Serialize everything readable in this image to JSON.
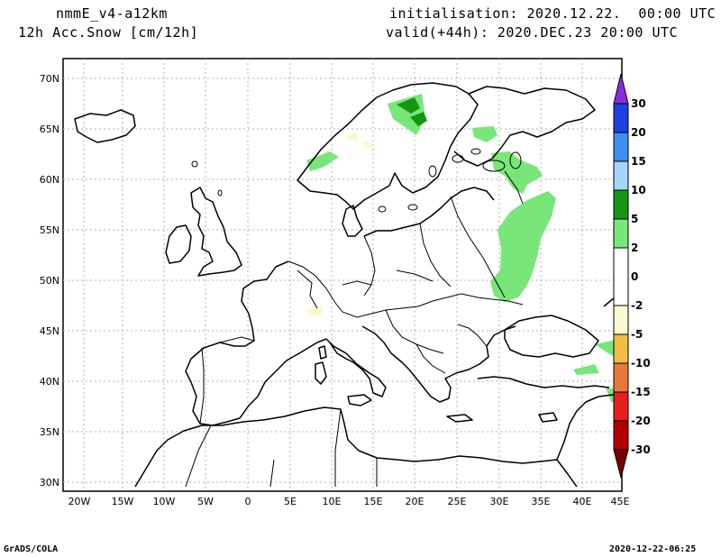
{
  "header": {
    "model": "nmmE_v4-a12km",
    "field": "12h Acc.Snow [cm/12h]",
    "init": "initialisation: 2020.12.22.  00:00 UTC",
    "valid": "valid(+44h): 2020.DEC.23 20:00 UTC"
  },
  "footer": {
    "left": "GrADS/COLA",
    "right": "2020-12-22-06:25"
  },
  "axes": {
    "lon_labels": [
      "20W",
      "15W",
      "10W",
      "5W",
      "0",
      "5E",
      "10E",
      "15E",
      "20E",
      "25E",
      "30E",
      "35E",
      "40E",
      "45E"
    ],
    "lat_labels": [
      "70N",
      "65N",
      "60N",
      "55N",
      "50N",
      "45N",
      "40N",
      "35N",
      "30N"
    ]
  },
  "colorbar": {
    "colors": [
      "#8a2be2",
      "#1e40e0",
      "#3d8ff0",
      "#a6d4fa",
      "#149614",
      "#78e678",
      "#ffffff",
      "#fafad2",
      "#f0be46",
      "#e6783c",
      "#e61e1e",
      "#b40000",
      "#7a0000"
    ],
    "labels": [
      "30",
      "20",
      "15",
      "10",
      "5",
      "2",
      "0",
      "-2",
      "-5",
      "-10",
      "-15",
      "-20",
      "-30"
    ]
  }
}
